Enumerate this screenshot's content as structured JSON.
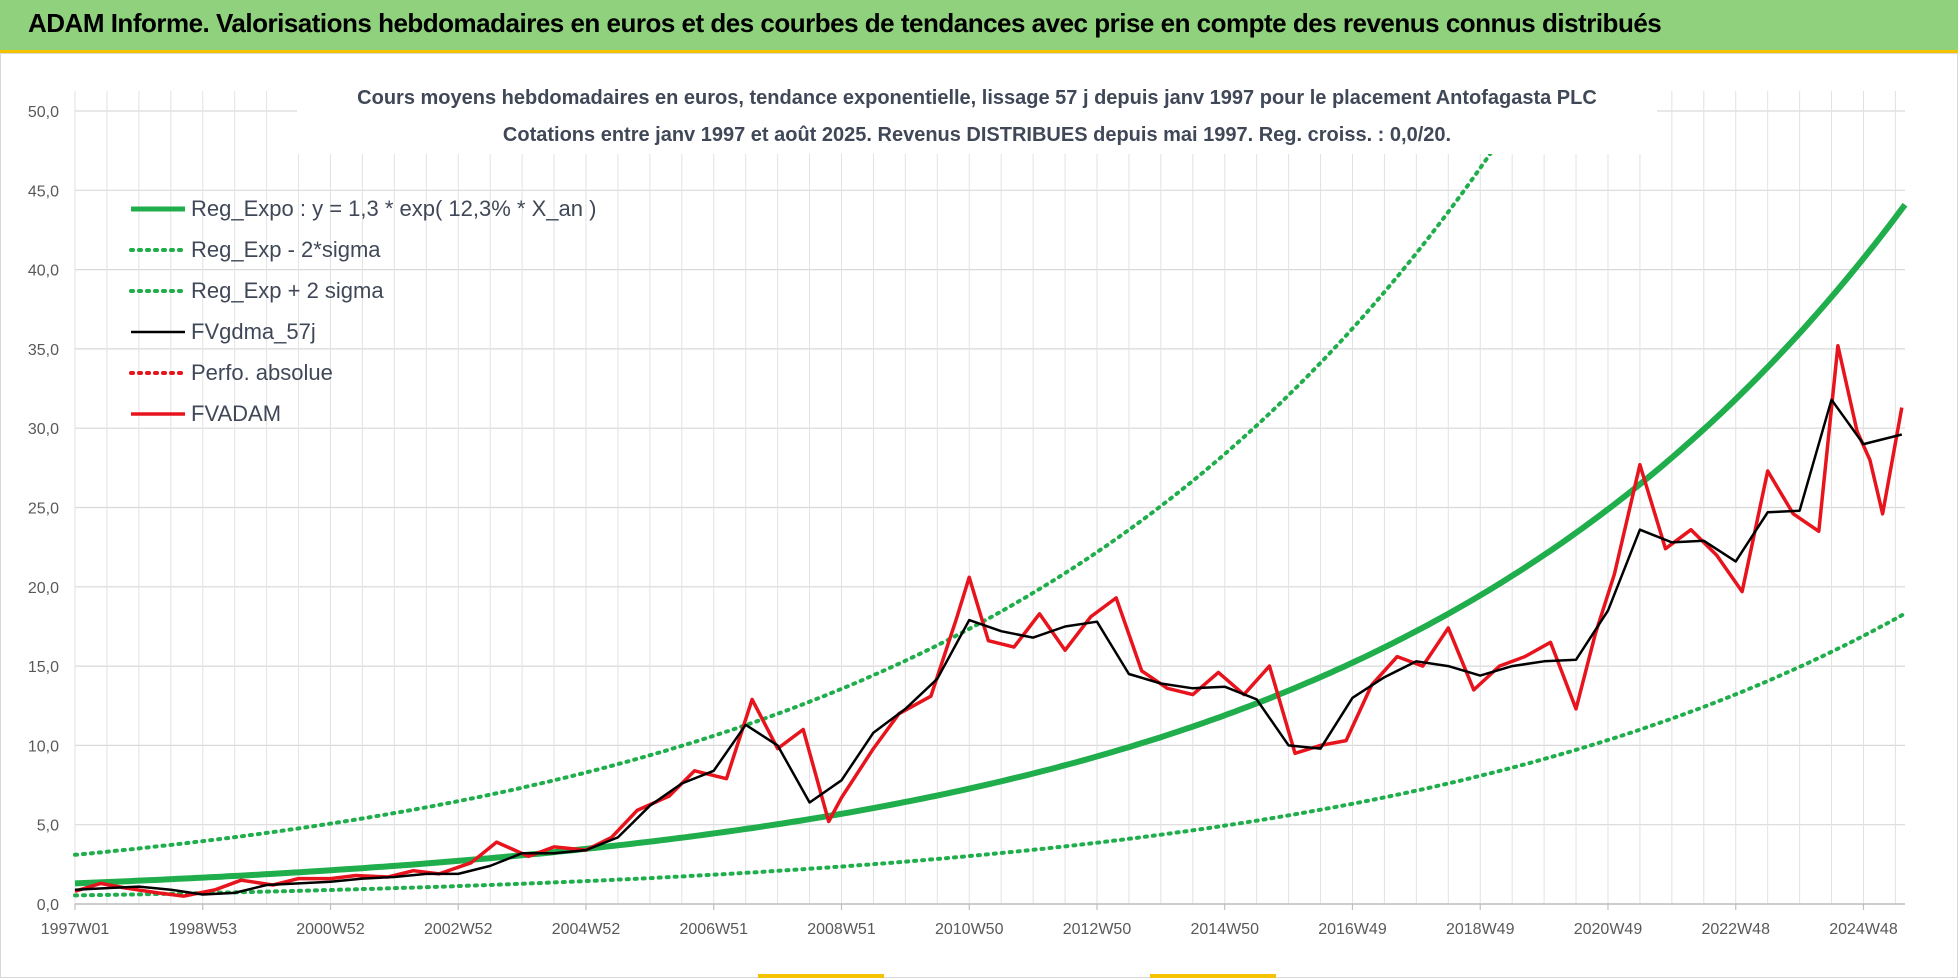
{
  "banner": {
    "title": "ADAM Informe. Valorisations hebdomadaires en euros et des courbes de tendances avec prise en compte des revenus connus distribués",
    "color": "#8fd17c",
    "accent": "#f3c200"
  },
  "chart_data": {
    "type": "line",
    "title_line1": "Cours moyens hebdomadaires en euros, tendance exponentielle, lissage 57 j depuis janv 1997  pour le placement Antofagasta PLC",
    "title_line2": "Cotations entre janv 1997 et août 2025.  Revenus DISTRIBUES depuis mai 1997. Reg. croiss. : 0,0/20.",
    "xlabel": "",
    "ylabel": "",
    "x_range": [
      1997.0,
      2025.65
    ],
    "ylim": [
      0,
      50
    ],
    "y_ticks": [
      "0,0",
      "5,0",
      "10,0",
      "15,0",
      "20,0",
      "25,0",
      "30,0",
      "35,0",
      "40,0",
      "45,0",
      "50,0"
    ],
    "x_ticks": [
      {
        "label": "1997W01",
        "x": 1997.0
      },
      {
        "label": "1998W53",
        "x": 1999.0
      },
      {
        "label": "2000W52",
        "x": 2001.0
      },
      {
        "label": "2002W52",
        "x": 2003.0
      },
      {
        "label": "2004W52",
        "x": 2005.0
      },
      {
        "label": "2006W51",
        "x": 2007.0
      },
      {
        "label": "2008W51",
        "x": 2009.0
      },
      {
        "label": "2010W50",
        "x": 2011.0
      },
      {
        "label": "2012W50",
        "x": 2013.0
      },
      {
        "label": "2014W50",
        "x": 2015.0
      },
      {
        "label": "2016W49",
        "x": 2017.0
      },
      {
        "label": "2018W49",
        "x": 2019.0
      },
      {
        "label": "2020W49",
        "x": 2021.0
      },
      {
        "label": "2022W48",
        "x": 2023.0
      },
      {
        "label": "2024W48",
        "x": 2025.0
      }
    ],
    "grid": true,
    "legend_position": "top-left",
    "series": [
      {
        "name": "Reg_Expo : y = 1,3 * exp( 12,3% *  X_an )",
        "style": "solid",
        "color": "#1fae4b",
        "kind": "expo",
        "a": 1.3,
        "rate": 0.123
      },
      {
        "name": "Reg_Exp - 2*sigma",
        "style": "dotted",
        "color": "#1fae4b",
        "kind": "expo",
        "a": 0.54,
        "rate": 0.123
      },
      {
        "name": "Reg_Exp + 2 sigma",
        "style": "dotted",
        "color": "#1fae4b",
        "kind": "expo",
        "a": 3.1,
        "rate": 0.123
      },
      {
        "name": "FVgdma_57j",
        "style": "solid",
        "color": "#000000",
        "kind": "points",
        "x": [
          1997.0,
          1997.5,
          1998.0,
          1998.5,
          1999.0,
          1999.5,
          2000.0,
          2000.5,
          2001.0,
          2001.5,
          2002.0,
          2002.5,
          2003.0,
          2003.5,
          2004.0,
          2004.5,
          2005.0,
          2005.5,
          2006.0,
          2006.5,
          2007.0,
          2007.5,
          2008.0,
          2008.5,
          2009.0,
          2009.5,
          2010.0,
          2010.5,
          2011.0,
          2011.5,
          2012.0,
          2012.5,
          2013.0,
          2013.5,
          2014.0,
          2014.5,
          2015.0,
          2015.5,
          2016.0,
          2016.5,
          2017.0,
          2017.5,
          2018.0,
          2018.5,
          2019.0,
          2019.5,
          2020.0,
          2020.5,
          2021.0,
          2021.5,
          2022.0,
          2022.5,
          2023.0,
          2023.5,
          2024.0,
          2024.5,
          2025.0,
          2025.6
        ],
        "y": [
          0.9,
          1.0,
          1.1,
          0.9,
          0.6,
          0.7,
          1.2,
          1.3,
          1.4,
          1.6,
          1.7,
          1.9,
          1.9,
          2.4,
          3.2,
          3.2,
          3.4,
          4.2,
          6.2,
          7.6,
          8.4,
          11.3,
          10.0,
          6.4,
          7.8,
          10.8,
          12.3,
          14.2,
          17.9,
          17.2,
          16.8,
          17.5,
          17.8,
          14.5,
          13.9,
          13.6,
          13.7,
          12.9,
          10.0,
          9.8,
          13.0,
          14.3,
          15.3,
          15.0,
          14.4,
          15.0,
          15.3,
          15.4,
          18.5,
          23.6,
          22.8,
          22.9,
          21.6,
          24.7,
          24.8,
          31.8,
          29.0,
          29.6
        ]
      },
      {
        "name": "Perfo. absolue",
        "style": "dotted",
        "color": "#e8141d",
        "kind": "none"
      },
      {
        "name": "FVADAM",
        "style": "solid",
        "color": "#e8141d",
        "kind": "points",
        "x": [
          1997.0,
          1997.4,
          1997.8,
          1998.3,
          1998.7,
          1999.2,
          1999.6,
          2000.1,
          2000.5,
          2001.0,
          2001.4,
          2001.9,
          2002.3,
          2002.7,
          2003.2,
          2003.6,
          2004.1,
          2004.5,
          2005.0,
          2005.4,
          2005.8,
          2006.3,
          2006.7,
          2007.2,
          2007.6,
          2008.0,
          2008.4,
          2008.8,
          2009.0,
          2009.5,
          2009.9,
          2010.4,
          2010.8,
          2011.0,
          2011.3,
          2011.7,
          2012.1,
          2012.5,
          2012.9,
          2013.3,
          2013.7,
          2014.1,
          2014.5,
          2014.9,
          2015.3,
          2015.7,
          2016.1,
          2016.5,
          2016.9,
          2017.3,
          2017.7,
          2018.1,
          2018.5,
          2018.9,
          2019.3,
          2019.7,
          2020.1,
          2020.5,
          2020.8,
          2021.1,
          2021.5,
          2021.9,
          2022.3,
          2022.7,
          2023.1,
          2023.5,
          2023.9,
          2024.3,
          2024.6,
          2024.9,
          2025.1,
          2025.3,
          2025.6
        ],
        "y": [
          0.8,
          1.3,
          1.0,
          0.7,
          0.5,
          0.9,
          1.5,
          1.2,
          1.6,
          1.6,
          1.8,
          1.7,
          2.1,
          1.9,
          2.6,
          3.9,
          3.0,
          3.6,
          3.4,
          4.2,
          5.9,
          6.8,
          8.4,
          7.9,
          12.9,
          9.8,
          11.0,
          5.2,
          6.7,
          9.8,
          12.0,
          13.1,
          18.0,
          20.6,
          16.6,
          16.2,
          18.3,
          16.0,
          18.1,
          19.3,
          14.7,
          13.6,
          13.2,
          14.6,
          13.2,
          15.0,
          9.5,
          10.0,
          10.3,
          13.8,
          15.6,
          15.0,
          17.4,
          13.5,
          15.0,
          15.6,
          16.5,
          12.3,
          17.0,
          20.8,
          27.7,
          22.4,
          23.6,
          22.0,
          19.7,
          27.3,
          24.6,
          23.5,
          35.2,
          29.8,
          28.0,
          24.6,
          31.3
        ]
      }
    ]
  }
}
